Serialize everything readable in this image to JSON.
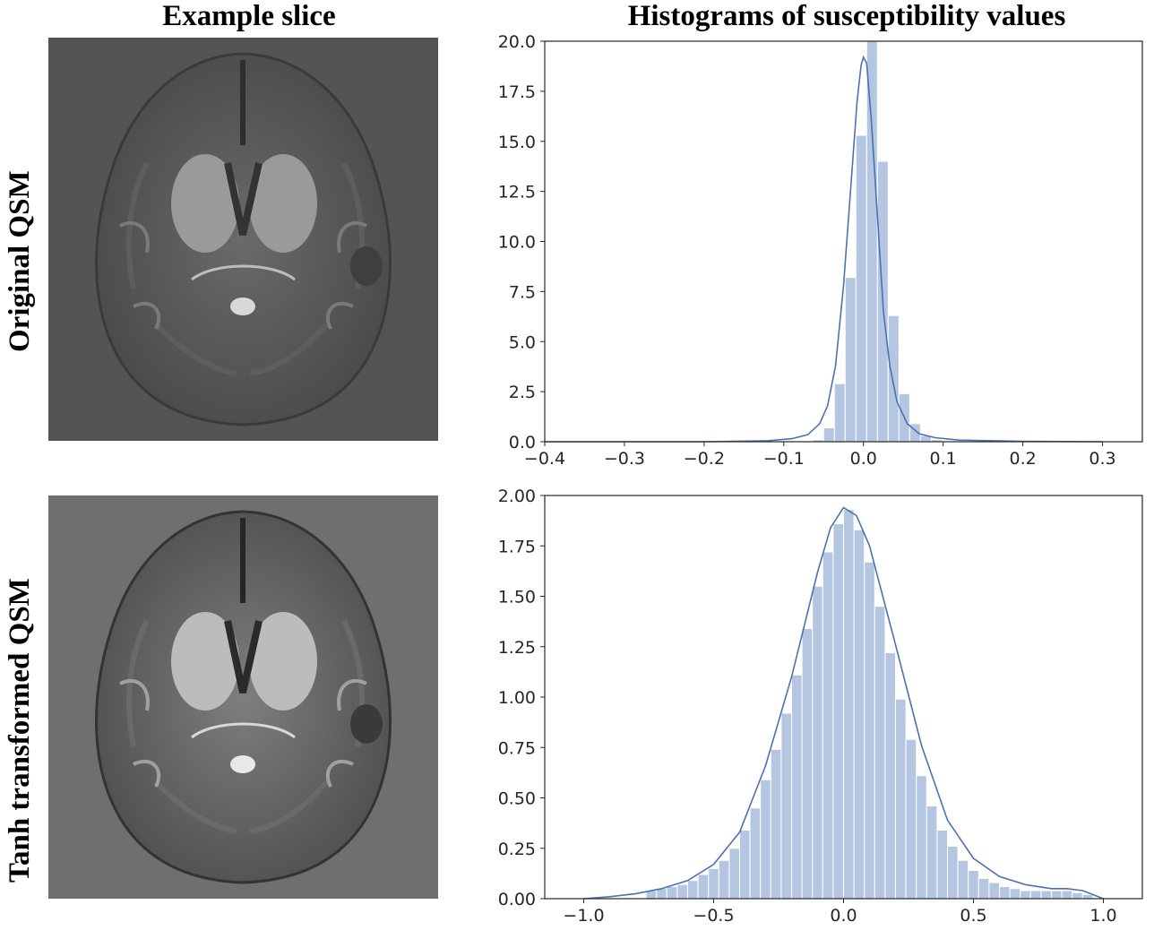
{
  "columns": {
    "left_title": "Example slice",
    "right_title": "Histograms of susceptibility values"
  },
  "rows": [
    {
      "label": "Original QSM",
      "background_gray": "#545454"
    },
    {
      "label": "Tanh transformed QSM",
      "background_gray": "#6f6f6f"
    }
  ],
  "colors": {
    "bar_fill": "#b4c6e2",
    "bar_edge": "#ffffff",
    "kde_line": "#4c72b0",
    "axis": "#262626"
  },
  "chart_data": [
    {
      "type": "bar",
      "subtype": "histogram_with_kde",
      "title": "",
      "xlabel": "",
      "ylabel": "",
      "xlim": [
        -0.4,
        0.35
      ],
      "ylim": [
        0,
        20.0
      ],
      "xticks": [
        -0.4,
        -0.3,
        -0.2,
        -0.1,
        0.0,
        0.1,
        0.2,
        0.3
      ],
      "xtick_labels": [
        "−0.4",
        "−0.3",
        "−0.2",
        "−0.1",
        "0.0",
        "0.1",
        "0.2",
        "0.3"
      ],
      "yticks": [
        0.0,
        2.5,
        5.0,
        7.5,
        10.0,
        12.5,
        15.0,
        17.5,
        20.0
      ],
      "ytick_labels": [
        "0.0",
        "2.5",
        "5.0",
        "7.5",
        "10.0",
        "12.5",
        "15.0",
        "17.5",
        "20.0"
      ],
      "bin_width": 0.0135,
      "bins": [
        {
          "x0": -0.0635,
          "height": 0.1
        },
        {
          "x0": -0.05,
          "height": 0.7
        },
        {
          "x0": -0.0365,
          "height": 2.9
        },
        {
          "x0": -0.023,
          "height": 8.2
        },
        {
          "x0": -0.0095,
          "height": 15.3
        },
        {
          "x0": 0.004,
          "height": 20.0
        },
        {
          "x0": 0.0175,
          "height": 14.0
        },
        {
          "x0": 0.031,
          "height": 6.3
        },
        {
          "x0": 0.0445,
          "height": 2.4
        },
        {
          "x0": 0.058,
          "height": 0.9
        },
        {
          "x0": 0.0715,
          "height": 0.3
        },
        {
          "x0": 0.085,
          "height": 0.1
        }
      ],
      "kde": {
        "x": [
          -0.4,
          -0.2,
          -0.12,
          -0.09,
          -0.07,
          -0.055,
          -0.045,
          -0.035,
          -0.025,
          -0.015,
          -0.008,
          -0.003,
          0.0,
          0.004,
          0.01,
          0.018,
          0.025,
          0.033,
          0.042,
          0.055,
          0.07,
          0.09,
          0.12,
          0.2,
          0.3
        ],
        "y": [
          0.0,
          0.0,
          0.05,
          0.15,
          0.35,
          0.9,
          1.8,
          3.8,
          7.8,
          13.2,
          17.0,
          18.8,
          19.2,
          18.9,
          16.0,
          11.0,
          6.5,
          3.8,
          2.0,
          0.9,
          0.4,
          0.2,
          0.08,
          0.02,
          0.0
        ]
      },
      "grid": false,
      "legend": "none"
    },
    {
      "type": "bar",
      "subtype": "histogram_with_kde",
      "title": "",
      "xlabel": "",
      "ylabel": "",
      "xlim": [
        -1.15,
        1.15
      ],
      "ylim": [
        0,
        2.0
      ],
      "xticks": [
        -1.0,
        -0.5,
        0.0,
        0.5,
        1.0
      ],
      "xtick_labels": [
        "−1.0",
        "−0.5",
        "0.0",
        "0.5",
        "1.0"
      ],
      "yticks": [
        0.0,
        0.25,
        0.5,
        0.75,
        1.0,
        1.25,
        1.5,
        1.75,
        2.0
      ],
      "ytick_labels": [
        "0.00",
        "0.25",
        "0.50",
        "0.75",
        "1.00",
        "1.25",
        "1.50",
        "1.75",
        "2.00"
      ],
      "bin_width": 0.04,
      "bins": [
        {
          "x0": -0.76,
          "height": 0.04
        },
        {
          "x0": -0.72,
          "height": 0.05
        },
        {
          "x0": -0.68,
          "height": 0.06
        },
        {
          "x0": -0.64,
          "height": 0.07
        },
        {
          "x0": -0.6,
          "height": 0.09
        },
        {
          "x0": -0.56,
          "height": 0.12
        },
        {
          "x0": -0.52,
          "height": 0.15
        },
        {
          "x0": -0.48,
          "height": 0.19
        },
        {
          "x0": -0.44,
          "height": 0.25
        },
        {
          "x0": -0.4,
          "height": 0.34
        },
        {
          "x0": -0.36,
          "height": 0.45
        },
        {
          "x0": -0.32,
          "height": 0.59
        },
        {
          "x0": -0.28,
          "height": 0.74
        },
        {
          "x0": -0.24,
          "height": 0.92
        },
        {
          "x0": -0.2,
          "height": 1.11
        },
        {
          "x0": -0.16,
          "height": 1.34
        },
        {
          "x0": -0.12,
          "height": 1.55
        },
        {
          "x0": -0.08,
          "height": 1.72
        },
        {
          "x0": -0.04,
          "height": 1.86
        },
        {
          "x0": 0.0,
          "height": 1.93
        },
        {
          "x0": 0.04,
          "height": 1.83
        },
        {
          "x0": 0.08,
          "height": 1.67
        },
        {
          "x0": 0.12,
          "height": 1.45
        },
        {
          "x0": 0.16,
          "height": 1.22
        },
        {
          "x0": 0.2,
          "height": 0.99
        },
        {
          "x0": 0.24,
          "height": 0.79
        },
        {
          "x0": 0.28,
          "height": 0.61
        },
        {
          "x0": 0.32,
          "height": 0.46
        },
        {
          "x0": 0.36,
          "height": 0.34
        },
        {
          "x0": 0.4,
          "height": 0.26
        },
        {
          "x0": 0.44,
          "height": 0.19
        },
        {
          "x0": 0.48,
          "height": 0.14
        },
        {
          "x0": 0.52,
          "height": 0.1
        },
        {
          "x0": 0.56,
          "height": 0.08
        },
        {
          "x0": 0.6,
          "height": 0.06
        },
        {
          "x0": 0.64,
          "height": 0.05
        },
        {
          "x0": 0.68,
          "height": 0.04
        },
        {
          "x0": 0.72,
          "height": 0.04
        },
        {
          "x0": 0.76,
          "height": 0.04
        },
        {
          "x0": 0.8,
          "height": 0.04
        },
        {
          "x0": 0.84,
          "height": 0.04
        },
        {
          "x0": 0.88,
          "height": 0.03
        },
        {
          "x0": 0.92,
          "height": 0.02
        }
      ],
      "kde": {
        "x": [
          -1.0,
          -0.9,
          -0.8,
          -0.7,
          -0.6,
          -0.5,
          -0.4,
          -0.3,
          -0.2,
          -0.1,
          -0.05,
          0.0,
          0.05,
          0.1,
          0.2,
          0.3,
          0.4,
          0.5,
          0.6,
          0.7,
          0.8,
          0.86,
          0.92,
          0.97,
          1.0
        ],
        "y": [
          0.0,
          0.01,
          0.025,
          0.05,
          0.09,
          0.17,
          0.33,
          0.66,
          1.1,
          1.62,
          1.84,
          1.94,
          1.9,
          1.75,
          1.26,
          0.76,
          0.39,
          0.2,
          0.11,
          0.07,
          0.05,
          0.05,
          0.04,
          0.015,
          0.0
        ]
      },
      "grid": false,
      "legend": "none"
    }
  ]
}
